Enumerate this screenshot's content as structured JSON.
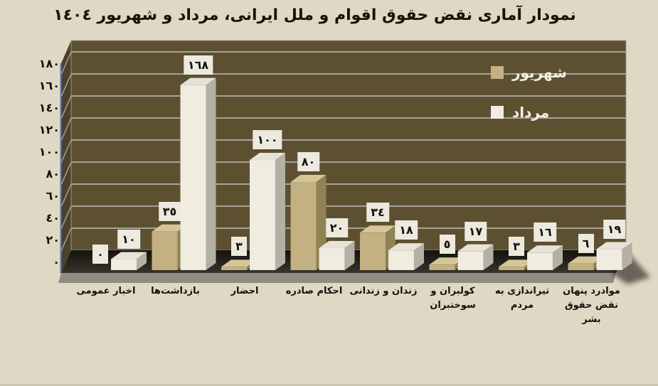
{
  "chart_data": {
    "type": "bar",
    "style": "3d-clustered-column",
    "rtl": true,
    "title": "نمودار آماری نقض حقوق اقوام و ملل ایرانی، مرداد و شهریور ١٤٠٤",
    "categories": [
      "اخبار عمومی",
      "بازداشت‌ها",
      "احضار",
      "احکام صادره",
      "زندان و زندانی",
      "کولبران و سوختبران",
      "تیراندازی به مردم",
      "موادرد پنهان نقض حقوق بشر"
    ],
    "category_lines": [
      [
        "اخبار عمومی"
      ],
      [
        "بازداشت‌ها"
      ],
      [
        "احضار"
      ],
      [
        "احکام صادره"
      ],
      [
        "زندان و زندانی"
      ],
      [
        "کولبران و",
        "سوختبران"
      ],
      [
        "تیراندازی به",
        "مردم"
      ],
      [
        "موادرد پنهان",
        "نقض حقوق",
        "بشر"
      ]
    ],
    "series": [
      {
        "name": "شهریور",
        "key": "shahrivar",
        "values": [
          0,
          35,
          3,
          80,
          34,
          5,
          3,
          6
        ],
        "value_labels": [
          "٠",
          "٣٥",
          "٣",
          "٨٠",
          "٣٤",
          "٥",
          "٣",
          "٦"
        ],
        "front_color": "#C3B182",
        "top_color": "#D5C697",
        "side_color": "#8F8254"
      },
      {
        "name": "مرداد",
        "key": "mordad",
        "values": [
          10,
          168,
          100,
          20,
          18,
          17,
          16,
          19
        ],
        "value_labels": [
          "١٠",
          "١٦٨",
          "١٠٠",
          "٢٠",
          "١٨",
          "١٧",
          "١٦",
          "١٩"
        ],
        "front_color": "#F0ECE0",
        "top_color": "#E7E3D6",
        "side_color": "#B5B0A4"
      }
    ],
    "ylim": [
      0,
      180
    ],
    "ytick_step": 20,
    "ytick_labels": [
      "٠",
      "٢٠",
      "٤٠",
      "٦٠",
      "٨٠",
      "١٠٠",
      "١٢٠",
      "١٤٠",
      "١٦٠",
      "١٨٠"
    ],
    "grid": true,
    "legend_position": "top-right"
  },
  "colors": {
    "background": "#DFD8C4",
    "bottom_edge": "#CBC4AE",
    "wall": "#5C5031",
    "wall_side": "#4C422A",
    "wall_stroke": "#99978B",
    "gridline": "#A5A49A",
    "axis_edge_blue": "#5B7DB8",
    "floor_dark": "#14120E",
    "floor_light": "#37342C",
    "floor_front": "#8F8C82",
    "shadow": "#1A1813",
    "value_label_box": "#ECE9DF",
    "title_text": "#1C1106",
    "tick_text": "#14100A",
    "category_text": "#14100A",
    "legend_text": "#F4F0E4"
  }
}
